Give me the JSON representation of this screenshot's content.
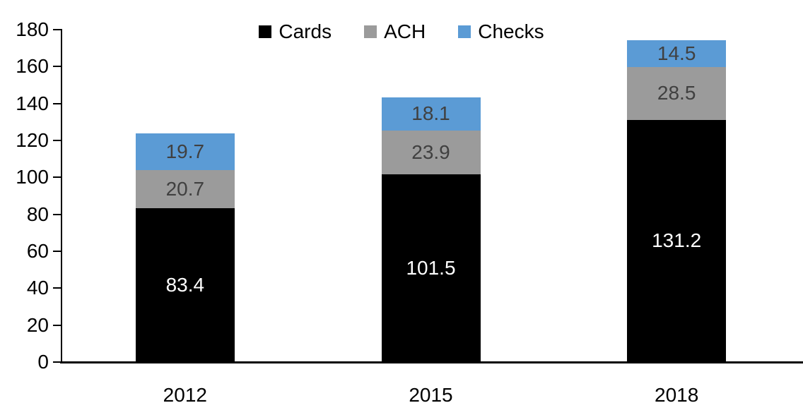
{
  "chart_data": {
    "type": "bar",
    "stacked": true,
    "title": "",
    "xlabel": "",
    "ylabel": "",
    "categories": [
      "2012",
      "2015",
      "2018"
    ],
    "series": [
      {
        "name": "Cards",
        "values": [
          83.4,
          101.5,
          131.2
        ],
        "color": "#000000",
        "label_color": "#ffffff"
      },
      {
        "name": "ACH",
        "values": [
          20.7,
          23.9,
          28.5
        ],
        "color": "#9b9b9b",
        "label_color": "#404040"
      },
      {
        "name": "Checks",
        "values": [
          19.7,
          18.1,
          14.5
        ],
        "color": "#5b9bd5",
        "label_color": "#404040"
      }
    ],
    "data_label_decimals": 1,
    "ylim": [
      0,
      180
    ],
    "ytick_step": 20,
    "ytick_labels": [
      "0",
      "20",
      "40",
      "60",
      "80",
      "100",
      "120",
      "140",
      "160",
      "180"
    ],
    "grid": false,
    "legend_position": "top-center",
    "legend_entries": [
      "Cards",
      "ACH",
      "Checks"
    ],
    "axis_color": "#000000",
    "background": "#ffffff"
  }
}
